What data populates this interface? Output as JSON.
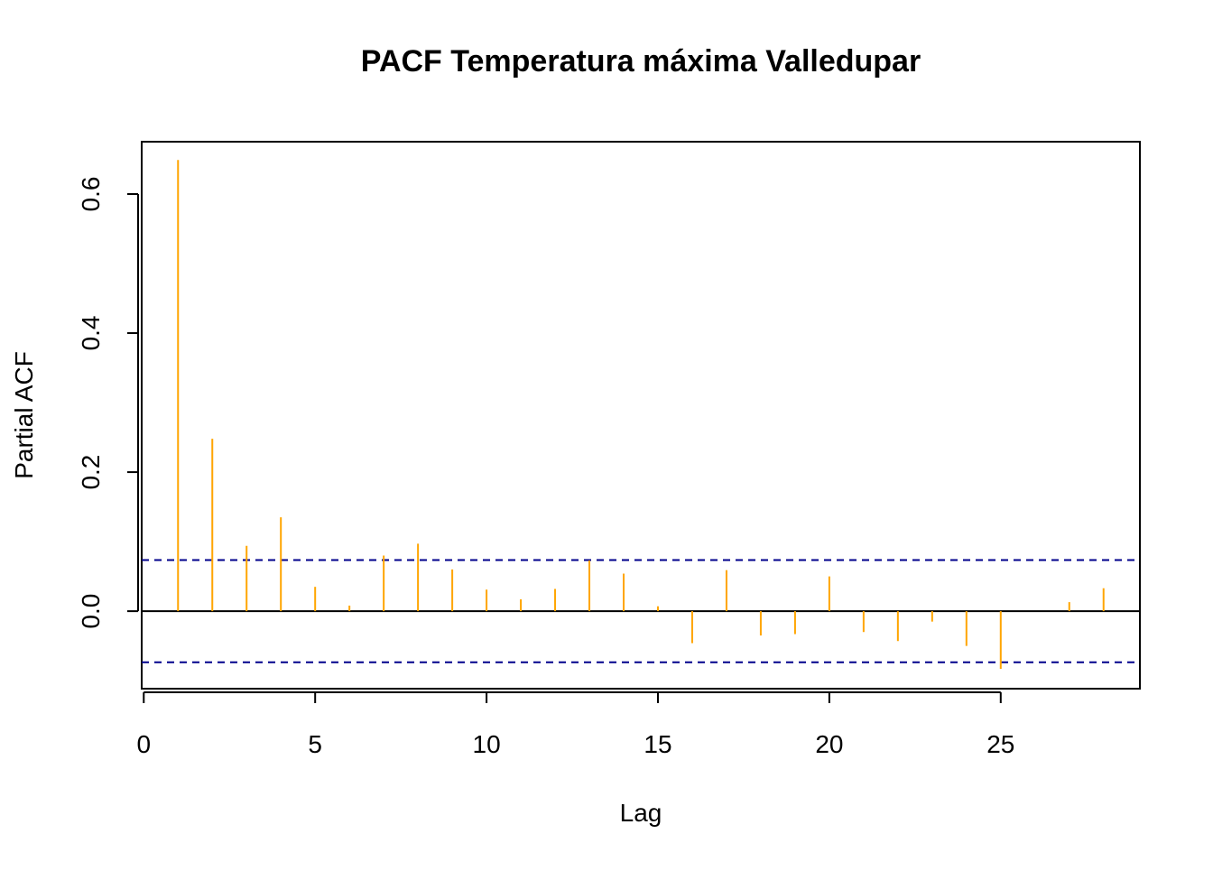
{
  "chart_data": {
    "type": "bar",
    "title": "PACF Temperatura máxima Valledupar",
    "xlabel": "Lag",
    "ylabel": "Partial ACF",
    "xlim": [
      -0.06,
      29.06
    ],
    "ylim": [
      -0.1115,
      0.6753
    ],
    "x_ticks": [
      0,
      5,
      10,
      15,
      20,
      25
    ],
    "x_tick_labels": [
      "0",
      "5",
      "10",
      "15",
      "20",
      "25"
    ],
    "y_ticks": [
      0.0,
      0.2,
      0.4,
      0.6
    ],
    "y_tick_labels": [
      "0.0",
      "0.2",
      "0.4",
      "0.6"
    ],
    "grid": false,
    "bar_color": "#FFA500",
    "series": [
      {
        "lags": [
          1,
          2,
          3,
          4,
          5,
          6,
          7,
          8,
          9,
          10,
          11,
          12,
          13,
          14,
          15,
          16,
          17,
          18,
          19,
          20,
          21,
          22,
          23,
          24,
          25,
          26,
          27,
          28
        ],
        "values": [
          0.649,
          0.248,
          0.094,
          0.135,
          0.035,
          0.008,
          0.08,
          0.097,
          0.06,
          0.031,
          0.017,
          0.032,
          0.073,
          0.054,
          0.007,
          -0.046,
          0.059,
          -0.035,
          -0.033,
          0.05,
          -0.03,
          -0.043,
          -0.015,
          -0.05,
          -0.083,
          0.0,
          0.013,
          0.033
        ]
      }
    ],
    "reference_lines": {
      "zero": {
        "value": 0.0,
        "color": "#000000"
      },
      "confidence_bounds": {
        "values": [
          0.0735,
          -0.0735
        ],
        "color": "#00008B",
        "style": "dashed"
      }
    }
  }
}
